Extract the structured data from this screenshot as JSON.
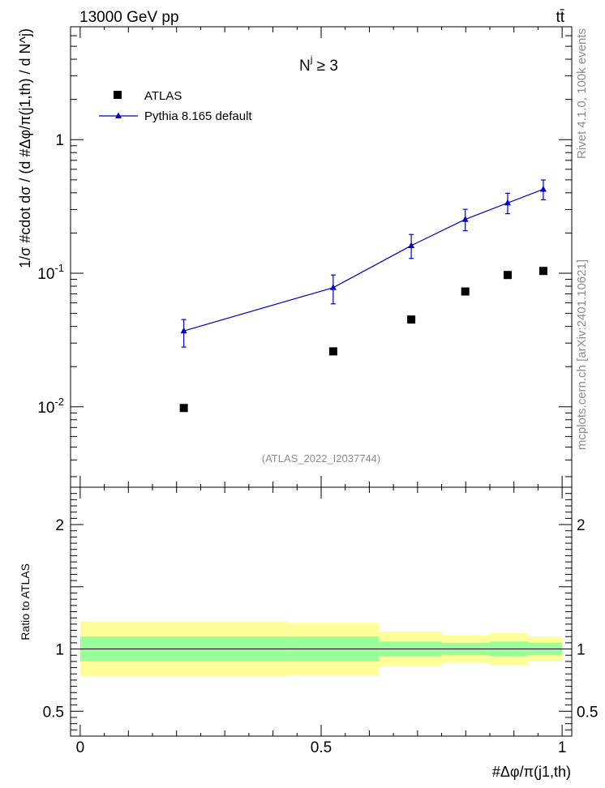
{
  "chart_data": {
    "type": "scatter",
    "top_left_label": "13000 GeV pp",
    "top_right_label": "tt̄",
    "selection_label": "N^j ≥ 3",
    "selection_base": "N",
    "selection_sup": "j",
    "selection_rest": " ≥ 3",
    "watermark": "(ATLAS_2022_I2037744)",
    "side_label_upper": "Rivet 4.1.0,  100k events",
    "side_label_lower": "mcplots.cern.ch [arXiv:2401.10621]",
    "ylabel_main": "1/σ #cdot dσ / (d #Δφ/π(j1,th) / d N^j)",
    "ylabel_ratio": "Ratio to ATLAS",
    "xlabel": "#Δφ/π(j1,th)",
    "xlim": [
      -0.02,
      1.02
    ],
    "ylim_main": [
      0.0025,
      7
    ],
    "ylim_ratio": [
      0.3,
      2.3
    ],
    "x_ticks": [
      {
        "v": 0,
        "label": "0"
      },
      {
        "v": 0.5,
        "label": "0.5"
      },
      {
        "v": 1,
        "label": "1"
      }
    ],
    "y_ticks_main": [
      {
        "v": 1,
        "label": "1"
      },
      {
        "v": 0.1,
        "label": "10^-1"
      },
      {
        "v": 0.01,
        "label": "10^-2"
      }
    ],
    "y_ticks_ratio": [
      {
        "v": 2,
        "label": "2"
      },
      {
        "v": 1,
        "label": "1"
      },
      {
        "v": 0.5,
        "label": "0.5"
      }
    ],
    "legend": [
      "ATLAS",
      "Pythia 8.165 default"
    ],
    "series": [
      {
        "name": "ATLAS",
        "marker": "square",
        "color": "#000000",
        "x": [
          0.215,
          0.525,
          0.687,
          0.799,
          0.887,
          0.961
        ],
        "y": [
          0.0098,
          0.026,
          0.045,
          0.073,
          0.097,
          0.104
        ]
      },
      {
        "name": "Pythia 8.165 default",
        "marker": "triangle",
        "color": "#0000cc",
        "x": [
          0.215,
          0.525,
          0.687,
          0.799,
          0.887,
          0.961
        ],
        "y": [
          0.037,
          0.078,
          0.161,
          0.253,
          0.336,
          0.425
        ],
        "yerr_low": [
          0.028,
          0.059,
          0.129,
          0.208,
          0.279,
          0.355
        ],
        "yerr_high": [
          0.045,
          0.097,
          0.195,
          0.301,
          0.397,
          0.499
        ]
      }
    ],
    "ratio_bands": {
      "edges": [
        0.0,
        0.43,
        0.62,
        0.75,
        0.85,
        0.93,
        1.0
      ],
      "inner_low": [
        0.9,
        0.9,
        0.94,
        0.95,
        0.94,
        0.95
      ],
      "inner_high": [
        1.1,
        1.1,
        1.06,
        1.05,
        1.06,
        1.05
      ],
      "outer_low": [
        0.78,
        0.79,
        0.86,
        0.89,
        0.87,
        0.9
      ],
      "outer_high": [
        1.22,
        1.21,
        1.14,
        1.11,
        1.13,
        1.1
      ],
      "inner_color": "#99ff99",
      "outer_color": "#ffff99"
    }
  }
}
